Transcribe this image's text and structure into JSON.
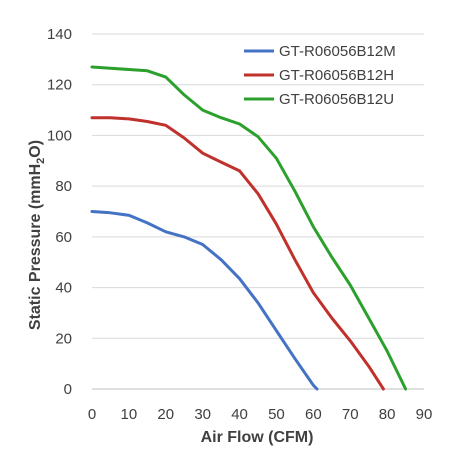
{
  "chart_data": {
    "type": "line",
    "xlabel": "Air Flow (CFM)",
    "ylabel": {
      "prefix": "Static Pressure  (mmH",
      "sub": "2",
      "suffix": "O)"
    },
    "xlim": [
      0,
      90
    ],
    "ylim": [
      0,
      140
    ],
    "x_ticks": [
      "0",
      "10",
      "20",
      "30",
      "40",
      "50",
      "60",
      "70",
      "80",
      "90"
    ],
    "y_ticks": [
      "0",
      "20",
      "40",
      "60",
      "80",
      "100",
      "120",
      "140"
    ],
    "grid": "horizontal",
    "legend_position": "top-right",
    "series": [
      {
        "name": "GT-R06056B12M",
        "color": "#4472C4",
        "points": [
          [
            0,
            70
          ],
          [
            5,
            69.5
          ],
          [
            10,
            68.5
          ],
          [
            15,
            65.5
          ],
          [
            20,
            62
          ],
          [
            25,
            60
          ],
          [
            30,
            57
          ],
          [
            35,
            51
          ],
          [
            40,
            43.5
          ],
          [
            45,
            34
          ],
          [
            50,
            23
          ],
          [
            55,
            12
          ],
          [
            60,
            1.5
          ],
          [
            61,
            0
          ]
        ]
      },
      {
        "name": "GT-R06056B12H",
        "color": "#C0312B",
        "points": [
          [
            0,
            107
          ],
          [
            5,
            107
          ],
          [
            10,
            106.5
          ],
          [
            15,
            105.5
          ],
          [
            20,
            104
          ],
          [
            25,
            99
          ],
          [
            30,
            93
          ],
          [
            35,
            89.5
          ],
          [
            40,
            86
          ],
          [
            45,
            77
          ],
          [
            50,
            65
          ],
          [
            55,
            51
          ],
          [
            60,
            38
          ],
          [
            65,
            28
          ],
          [
            70,
            19
          ],
          [
            75,
            9
          ],
          [
            79,
            0
          ]
        ]
      },
      {
        "name": "GT-R06056B12U",
        "color": "#2CA02C",
        "points": [
          [
            0,
            127
          ],
          [
            5,
            126.5
          ],
          [
            10,
            126
          ],
          [
            15,
            125.5
          ],
          [
            20,
            123
          ],
          [
            25,
            116
          ],
          [
            30,
            110
          ],
          [
            35,
            107
          ],
          [
            40,
            104.5
          ],
          [
            45,
            99.5
          ],
          [
            50,
            91
          ],
          [
            55,
            78
          ],
          [
            60,
            64
          ],
          [
            65,
            52
          ],
          [
            70,
            41
          ],
          [
            75,
            28
          ],
          [
            80,
            15
          ],
          [
            85,
            0
          ]
        ]
      }
    ]
  }
}
